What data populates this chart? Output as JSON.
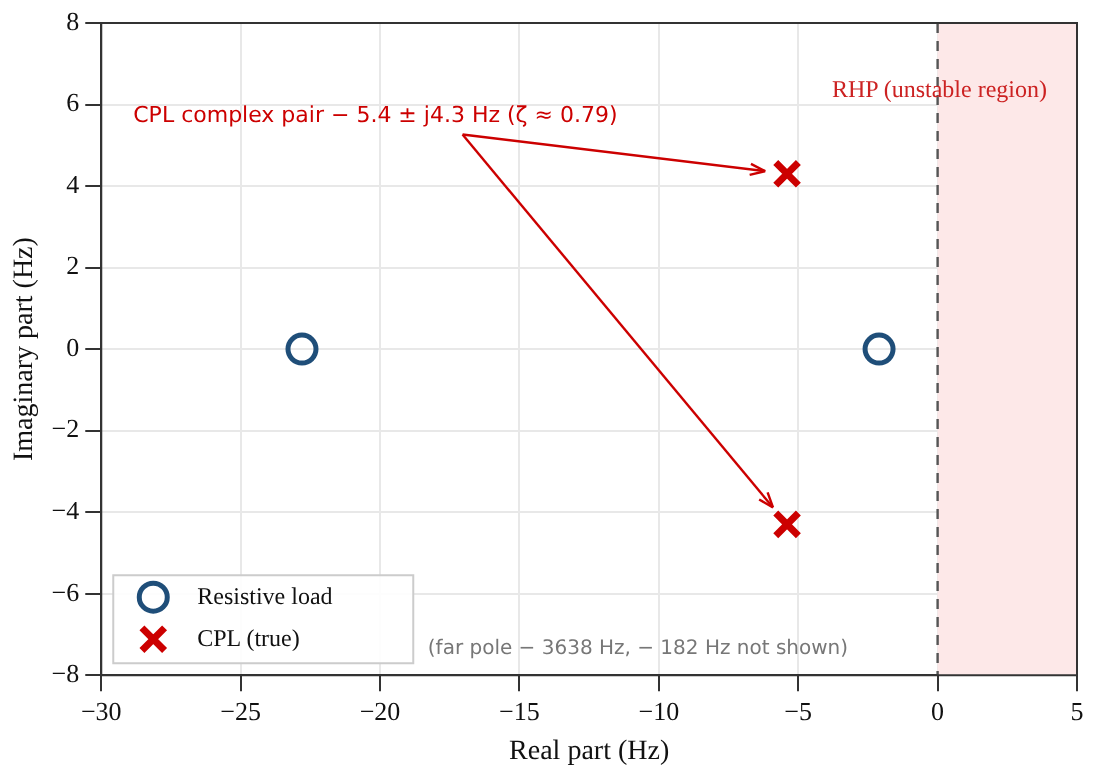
{
  "chart_data": {
    "type": "scatter",
    "xlabel": "Real part (Hz)",
    "ylabel": "Imaginary part (Hz)",
    "series": [
      {
        "name": "Resistive load",
        "color": "#1f4e79",
        "marker": "circle",
        "x": [
          -22.8,
          -2.1
        ],
        "values": [
          0,
          0
        ]
      },
      {
        "name": "CPL (true)",
        "color": "#cc0000",
        "marker": "cross",
        "x": [
          -5.4,
          -5.4
        ],
        "values": [
          4.3,
          -4.3
        ]
      }
    ],
    "xlim": [
      -30,
      5
    ],
    "xticks": [
      -30,
      -25,
      -20,
      -15,
      -10,
      -5,
      0,
      5
    ],
    "ylim": [
      -8,
      8
    ],
    "yticks": [
      -8,
      -6,
      -4,
      -2,
      0,
      2,
      4,
      6,
      8
    ],
    "bands": [
      {
        "axis": "x",
        "from": 0,
        "to": 5,
        "label": "RHP (unstable region)",
        "color": "#fde8e8"
      }
    ],
    "ref_lines": [
      {
        "axis": "x",
        "value": 0,
        "color": "#555555",
        "line_style": "dashed"
      }
    ],
    "annotations": [
      "CPL complex pair − 5.4 ± j4.3 Hz (ζ ≈ 0.79)",
      "(far pole − 3638 Hz, − 182 Hz not shown)"
    ],
    "grid": true,
    "legend": "bottom left"
  }
}
